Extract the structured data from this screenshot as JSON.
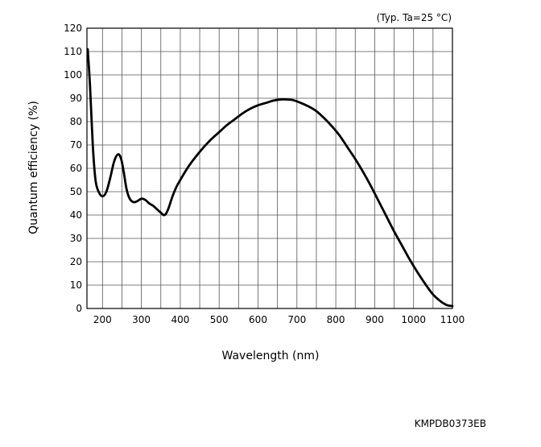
{
  "chart_data": {
    "type": "line",
    "title": "",
    "annotation": "(Typ. Ta=25 °C)",
    "xlabel": "Wavelength (nm)",
    "ylabel": "Quantum efficiency (%)",
    "xlim": [
      160,
      1100
    ],
    "ylim": [
      0,
      120
    ],
    "xticks": [
      200,
      300,
      400,
      500,
      600,
      700,
      800,
      900,
      1000,
      1100
    ],
    "yticks": [
      0,
      10,
      20,
      30,
      40,
      50,
      60,
      70,
      80,
      90,
      100,
      110,
      120
    ],
    "x_grid_lines": [
      160,
      200,
      250,
      300,
      350,
      400,
      450,
      500,
      550,
      600,
      650,
      700,
      750,
      800,
      850,
      900,
      950,
      1000,
      1050,
      1100
    ],
    "grid": true,
    "series": [
      {
        "values": [
          [
            162,
            111
          ],
          [
            168,
            95
          ],
          [
            175,
            70
          ],
          [
            182,
            55
          ],
          [
            190,
            50
          ],
          [
            200,
            48
          ],
          [
            210,
            50
          ],
          [
            220,
            56
          ],
          [
            230,
            63
          ],
          [
            240,
            66
          ],
          [
            248,
            64
          ],
          [
            255,
            58
          ],
          [
            262,
            51
          ],
          [
            270,
            47
          ],
          [
            280,
            45.5
          ],
          [
            290,
            46
          ],
          [
            300,
            47
          ],
          [
            310,
            46.5
          ],
          [
            320,
            45
          ],
          [
            330,
            44
          ],
          [
            340,
            42.5
          ],
          [
            350,
            41
          ],
          [
            357,
            40
          ],
          [
            363,
            40.5
          ],
          [
            370,
            43
          ],
          [
            380,
            48
          ],
          [
            390,
            52
          ],
          [
            400,
            55
          ],
          [
            420,
            60.5
          ],
          [
            440,
            65
          ],
          [
            460,
            69
          ],
          [
            480,
            72.5
          ],
          [
            500,
            75.5
          ],
          [
            520,
            78.5
          ],
          [
            540,
            81
          ],
          [
            560,
            83.5
          ],
          [
            580,
            85.5
          ],
          [
            600,
            87
          ],
          [
            620,
            88
          ],
          [
            640,
            89
          ],
          [
            660,
            89.5
          ],
          [
            670,
            89.5
          ],
          [
            690,
            89.2
          ],
          [
            710,
            88
          ],
          [
            730,
            86.5
          ],
          [
            750,
            84.5
          ],
          [
            770,
            81.5
          ],
          [
            790,
            78
          ],
          [
            810,
            74
          ],
          [
            830,
            69
          ],
          [
            850,
            64
          ],
          [
            870,
            58.5
          ],
          [
            890,
            52.5
          ],
          [
            910,
            46
          ],
          [
            930,
            39.5
          ],
          [
            950,
            33
          ],
          [
            970,
            27
          ],
          [
            990,
            21
          ],
          [
            1010,
            15.5
          ],
          [
            1030,
            10.5
          ],
          [
            1050,
            6
          ],
          [
            1070,
            3
          ],
          [
            1085,
            1.5
          ],
          [
            1100,
            1
          ]
        ]
      }
    ]
  },
  "footer_code": "KMPDB0373EB"
}
